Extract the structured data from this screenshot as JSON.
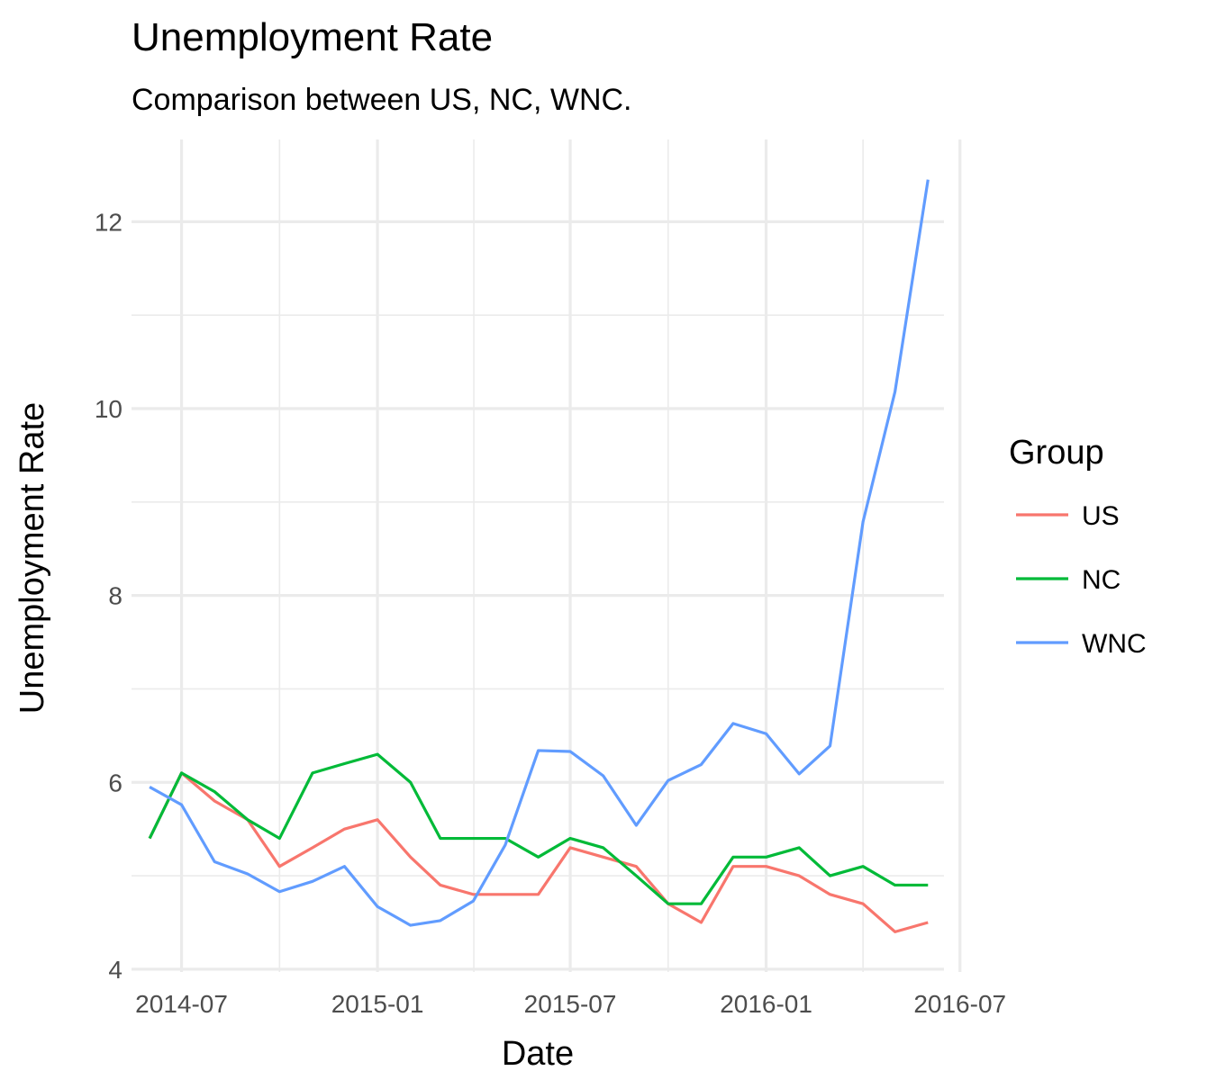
{
  "chart_data": {
    "type": "line",
    "title": "Unemployment Rate",
    "subtitle": "Comparison between US, NC, WNC.",
    "xlabel": "Date",
    "ylabel": "Unemployment Rate",
    "x": [
      "2014-06-01",
      "2014-07-01",
      "2014-08-01",
      "2014-09-01",
      "2014-10-01",
      "2014-11-01",
      "2014-12-01",
      "2015-01-01",
      "2015-02-01",
      "2015-03-01",
      "2015-04-01",
      "2015-05-01",
      "2015-06-01",
      "2015-07-01",
      "2015-08-01",
      "2015-09-01",
      "2015-10-01",
      "2015-11-01",
      "2015-12-01",
      "2016-01-01",
      "2016-02-01",
      "2016-03-01",
      "2016-04-01",
      "2016-05-01",
      "2016-06-01"
    ],
    "series": [
      {
        "name": "US",
        "color": "#F8766D",
        "values": [
          5.4,
          6.1,
          5.8,
          5.6,
          5.1,
          5.3,
          5.5,
          5.6,
          5.2,
          4.9,
          4.8,
          4.8,
          4.8,
          5.3,
          5.2,
          5.1,
          4.7,
          4.5,
          5.1,
          5.1,
          5.0,
          4.8,
          4.7,
          4.4,
          4.5
        ]
      },
      {
        "name": "NC",
        "color": "#00BA38",
        "values": [
          5.4,
          6.1,
          5.9,
          5.6,
          5.4,
          6.1,
          6.2,
          6.3,
          6.0,
          5.4,
          5.4,
          5.4,
          5.2,
          5.4,
          5.3,
          5.0,
          4.7,
          4.7,
          5.2,
          5.2,
          5.3,
          5.0,
          5.1,
          4.9,
          4.9
        ]
      },
      {
        "name": "WNC",
        "color": "#619CFF",
        "values": [
          5.95,
          5.76,
          5.15,
          5.02,
          4.83,
          4.94,
          5.1,
          4.67,
          4.47,
          4.52,
          4.73,
          5.33,
          6.34,
          6.33,
          6.07,
          5.54,
          6.02,
          6.19,
          6.63,
          6.52,
          6.09,
          6.39,
          8.79,
          10.18,
          12.45
        ]
      }
    ],
    "x_ticks": [
      "2014-07-01",
      "2015-01-01",
      "2015-07-01",
      "2016-01-01",
      "2016-07-01"
    ],
    "x_tick_labels": [
      "2014-07",
      "2015-01",
      "2015-07",
      "2016-01",
      "2016-07"
    ],
    "x_range": [
      "2014-05-15",
      "2016-06-16"
    ],
    "y_ticks": [
      4,
      6,
      8,
      10,
      12
    ],
    "y_minor_ticks": [
      5,
      7,
      9,
      11
    ],
    "ylim": [
      3.97,
      12.88
    ],
    "grid": true,
    "legend": {
      "title": "Group",
      "position": "right",
      "items": [
        {
          "label": "US",
          "color": "#F8766D"
        },
        {
          "label": "NC",
          "color": "#00BA38"
        },
        {
          "label": "WNC",
          "color": "#619CFF"
        }
      ]
    }
  }
}
